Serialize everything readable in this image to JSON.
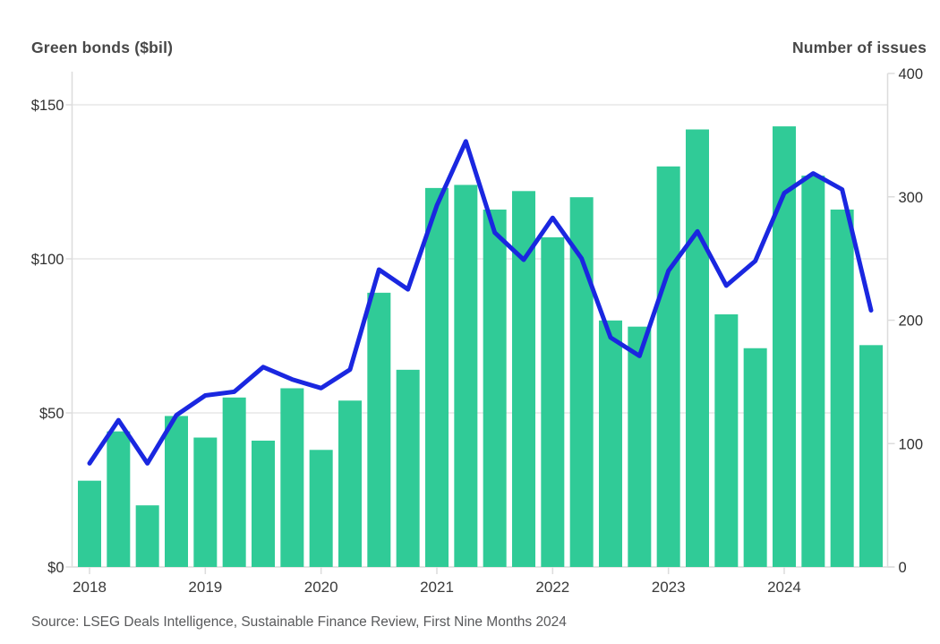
{
  "header": {
    "left_title": "Green bonds ($bil)",
    "right_title": "Number of issues"
  },
  "footer": {
    "source": "Source: LSEG Deals Intelligence, Sustainable Finance Review, First Nine Months 2024"
  },
  "colors": {
    "bar": "#30cb97",
    "line": "#1a27e0",
    "grid": "#e7e7e7",
    "axis": "#dcdcdc",
    "tick_label": "#303030",
    "year_label": "#3a3a3a"
  },
  "chart_data": {
    "type": "bar+line combo",
    "title_left_axis": "Green bonds ($bil)",
    "title_right_axis": "Number of issues",
    "quarters": [
      "Q1 2018",
      "Q2 2018",
      "Q3 2018",
      "Q4 2018",
      "Q1 2019",
      "Q2 2019",
      "Q3 2019",
      "Q4 2019",
      "Q1 2020",
      "Q2 2020",
      "Q3 2020",
      "Q4 2020",
      "Q1 2021",
      "Q2 2021",
      "Q3 2021",
      "Q4 2021",
      "Q1 2022",
      "Q2 2022",
      "Q3 2022",
      "Q4 2022",
      "Q1 2023",
      "Q2 2023",
      "Q3 2023",
      "Q4 2023",
      "Q1 2024",
      "Q2 2024",
      "Q3 2024",
      "Q4 2024"
    ],
    "series": [
      {
        "name": "Green bonds ($bil)",
        "type": "bar",
        "axis": "left",
        "values": [
          28,
          44,
          20,
          49,
          42,
          55,
          41,
          58,
          38,
          54,
          89,
          64,
          123,
          124,
          116,
          122,
          107,
          120,
          80,
          78,
          130,
          142,
          82,
          71,
          143,
          127,
          116,
          72
        ]
      },
      {
        "name": "Number of issues",
        "type": "line",
        "axis": "right",
        "values": [
          84,
          119,
          84,
          123,
          139,
          142,
          162,
          152,
          145,
          160,
          241,
          225,
          293,
          345,
          271,
          249,
          283,
          250,
          186,
          171,
          240,
          272,
          228,
          248,
          303,
          319,
          306,
          208
        ]
      }
    ],
    "left_axis": {
      "min": 0,
      "max": 150,
      "ticks": [
        0,
        50,
        100,
        150
      ],
      "tick_labels": [
        "$0",
        "$50",
        "$100",
        "$150"
      ]
    },
    "right_axis": {
      "min": 0,
      "max": 400,
      "ticks": [
        0,
        100,
        200,
        300,
        400
      ],
      "tick_labels": [
        "0",
        "100",
        "200",
        "300",
        "400"
      ]
    },
    "x_ticks": [
      {
        "label": "2018",
        "index": 0
      },
      {
        "label": "2019",
        "index": 4
      },
      {
        "label": "2020",
        "index": 8
      },
      {
        "label": "2021",
        "index": 12
      },
      {
        "label": "2022",
        "index": 16
      },
      {
        "label": "2023",
        "index": 20
      },
      {
        "label": "2024",
        "index": 24
      }
    ],
    "grid": "horizontal gridlines at left-axis ticks",
    "legend": "none"
  }
}
